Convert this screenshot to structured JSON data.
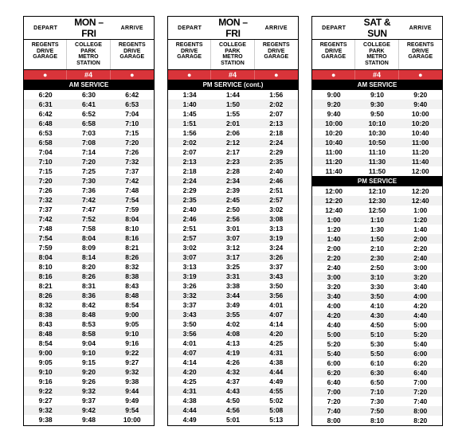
{
  "labels": {
    "depart": "DEPART",
    "arrive": "ARRIVE",
    "stop_left": "REGENTS\nDRIVE GARAGE",
    "stop_mid": "COLLEGE PARK\nMETRO STATION",
    "stop_right": "REGENTS\nDRIVE GARAGE",
    "dot": "●",
    "route": "#4",
    "am": "AM SERVICE",
    "pm": "PM SERVICE",
    "pm_cont": "PM SERVICE (cont.)"
  },
  "colors": {
    "red": "#d9343a",
    "black": "#000000",
    "stripe": "#f1f1f1"
  },
  "panels": [
    {
      "day_label": "MON – FRI",
      "sections": [
        {
          "band": "AM SERVICE",
          "rows": [
            [
              "6:20",
              "6:30",
              "6:42"
            ],
            [
              "6:31",
              "6:41",
              "6:53"
            ],
            [
              "6:42",
              "6:52",
              "7:04"
            ],
            [
              "6:48",
              "6:58",
              "7:10"
            ],
            [
              "6:53",
              "7:03",
              "7:15"
            ],
            [
              "6:58",
              "7:08",
              "7:20"
            ],
            [
              "7:04",
              "7:14",
              "7:26"
            ],
            [
              "7:10",
              "7:20",
              "7:32"
            ],
            [
              "7:15",
              "7:25",
              "7:37"
            ],
            [
              "7:20",
              "7:30",
              "7:42"
            ],
            [
              "7:26",
              "7:36",
              "7:48"
            ],
            [
              "7:32",
              "7:42",
              "7:54"
            ],
            [
              "7:37",
              "7:47",
              "7:59"
            ],
            [
              "7:42",
              "7:52",
              "8:04"
            ],
            [
              "7:48",
              "7:58",
              "8:10"
            ],
            [
              "7:54",
              "8:04",
              "8:16"
            ],
            [
              "7:59",
              "8:09",
              "8:21"
            ],
            [
              "8:04",
              "8:14",
              "8:26"
            ],
            [
              "8:10",
              "8:20",
              "8:32"
            ],
            [
              "8:16",
              "8:26",
              "8:38"
            ],
            [
              "8:21",
              "8:31",
              "8:43"
            ],
            [
              "8:26",
              "8:36",
              "8:48"
            ],
            [
              "8:32",
              "8:42",
              "8:54"
            ],
            [
              "8:38",
              "8:48",
              "9:00"
            ],
            [
              "8:43",
              "8:53",
              "9:05"
            ],
            [
              "8:48",
              "8:58",
              "9:10"
            ],
            [
              "8:54",
              "9:04",
              "9:16"
            ],
            [
              "9:00",
              "9:10",
              "9:22"
            ],
            [
              "9:05",
              "9:15",
              "9:27"
            ],
            [
              "9:10",
              "9:20",
              "9:32"
            ],
            [
              "9:16",
              "9:26",
              "9:38"
            ],
            [
              "9:22",
              "9:32",
              "9:44"
            ],
            [
              "9:27",
              "9:37",
              "9:49"
            ],
            [
              "9:32",
              "9:42",
              "9:54"
            ],
            [
              "9:38",
              "9:48",
              "10:00"
            ]
          ]
        }
      ]
    },
    {
      "day_label": "MON – FRI",
      "sections": [
        {
          "band": "PM SERVICE (cont.)",
          "rows": [
            [
              "1:34",
              "1:44",
              "1:56"
            ],
            [
              "1:40",
              "1:50",
              "2:02"
            ],
            [
              "1:45",
              "1:55",
              "2:07"
            ],
            [
              "1:51",
              "2:01",
              "2:13"
            ],
            [
              "1:56",
              "2:06",
              "2:18"
            ],
            [
              "2:02",
              "2:12",
              "2:24"
            ],
            [
              "2:07",
              "2:17",
              "2:29"
            ],
            [
              "2:13",
              "2:23",
              "2:35"
            ],
            [
              "2:18",
              "2:28",
              "2:40"
            ],
            [
              "2:24",
              "2:34",
              "2:46"
            ],
            [
              "2:29",
              "2:39",
              "2:51"
            ],
            [
              "2:35",
              "2:45",
              "2:57"
            ],
            [
              "2:40",
              "2:50",
              "3:02"
            ],
            [
              "2:46",
              "2:56",
              "3:08"
            ],
            [
              "2:51",
              "3:01",
              "3:13"
            ],
            [
              "2:57",
              "3:07",
              "3:19"
            ],
            [
              "3:02",
              "3:12",
              "3:24"
            ],
            [
              "3:07",
              "3:17",
              "3:26"
            ],
            [
              "3:13",
              "3:25",
              "3:37"
            ],
            [
              "3:19",
              "3:31",
              "3:43"
            ],
            [
              "3:26",
              "3:38",
              "3:50"
            ],
            [
              "3:32",
              "3:44",
              "3:56"
            ],
            [
              "3:37",
              "3:49",
              "4:01"
            ],
            [
              "3:43",
              "3:55",
              "4:07"
            ],
            [
              "3:50",
              "4:02",
              "4:14"
            ],
            [
              "3:56",
              "4:08",
              "4:20"
            ],
            [
              "4:01",
              "4:13",
              "4:25"
            ],
            [
              "4:07",
              "4:19",
              "4:31"
            ],
            [
              "4:14",
              "4:26",
              "4:38"
            ],
            [
              "4:20",
              "4:32",
              "4:44"
            ],
            [
              "4:25",
              "4:37",
              "4:49"
            ],
            [
              "4:31",
              "4:43",
              "4:55"
            ],
            [
              "4:38",
              "4:50",
              "5:02"
            ],
            [
              "4:44",
              "4:56",
              "5:08"
            ],
            [
              "4:49",
              "5:01",
              "5:13"
            ]
          ]
        }
      ]
    },
    {
      "day_label": "SAT & SUN",
      "sections": [
        {
          "band": "AM SERVICE",
          "rows": [
            [
              "9:00",
              "9:10",
              "9:20"
            ],
            [
              "9:20",
              "9:30",
              "9:40"
            ],
            [
              "9:40",
              "9:50",
              "10:00"
            ],
            [
              "10:00",
              "10:10",
              "10:20"
            ],
            [
              "10:20",
              "10:30",
              "10:40"
            ],
            [
              "10:40",
              "10:50",
              "11:00"
            ],
            [
              "11:00",
              "11:10",
              "11:20"
            ],
            [
              "11:20",
              "11:30",
              "11:40"
            ],
            [
              "11:40",
              "11:50",
              "12:00"
            ]
          ]
        },
        {
          "band": "PM SERVICE",
          "rows": [
            [
              "12:00",
              "12:10",
              "12:20"
            ],
            [
              "12:20",
              "12:30",
              "12:40"
            ],
            [
              "12:40",
              "12:50",
              "1:00"
            ],
            [
              "1:00",
              "1:10",
              "1:20"
            ],
            [
              "1:20",
              "1:30",
              "1:40"
            ],
            [
              "1:40",
              "1:50",
              "2:00"
            ],
            [
              "2:00",
              "2:10",
              "2:20"
            ],
            [
              "2:20",
              "2:30",
              "2:40"
            ],
            [
              "2:40",
              "2:50",
              "3:00"
            ],
            [
              "3:00",
              "3:10",
              "3:20"
            ],
            [
              "3:20",
              "3:30",
              "3:40"
            ],
            [
              "3:40",
              "3:50",
              "4:00"
            ],
            [
              "4:00",
              "4:10",
              "4:20"
            ],
            [
              "4:20",
              "4:30",
              "4:40"
            ],
            [
              "4:40",
              "4:50",
              "5:00"
            ],
            [
              "5:00",
              "5:10",
              "5:20"
            ],
            [
              "5:20",
              "5:30",
              "5:40"
            ],
            [
              "5:40",
              "5:50",
              "6:00"
            ],
            [
              "6:00",
              "6:10",
              "6:20"
            ],
            [
              "6:20",
              "6:30",
              "6:40"
            ],
            [
              "6:40",
              "6:50",
              "7:00"
            ],
            [
              "7:00",
              "7:10",
              "7:20"
            ],
            [
              "7:20",
              "7:30",
              "7:40"
            ],
            [
              "7:40",
              "7:50",
              "8:00"
            ],
            [
              "8:00",
              "8:10",
              "8:20"
            ]
          ]
        }
      ]
    }
  ]
}
